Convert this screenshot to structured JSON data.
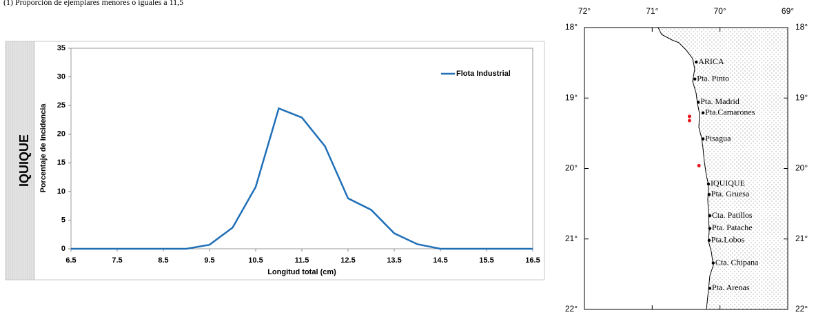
{
  "chart_data": [
    {
      "type": "line",
      "title": "(1) Proporción de ejemplares menores o iguales a 11,5",
      "panel_label": "IQUIQUE",
      "x_label": "Longitud total (cm)",
      "y_label": "Porcentaje de Incidencia",
      "x": [
        6.5,
        7,
        7.5,
        8,
        8.5,
        9,
        9.5,
        10,
        10.5,
        11,
        11.5,
        12,
        12.5,
        13,
        13.5,
        14,
        14.5,
        15,
        15.5,
        16,
        16.5
      ],
      "series": [
        {
          "name": "Flota Industrial",
          "color": "#1f6fb8",
          "values": [
            0,
            0,
            0,
            0,
            0,
            0,
            0.7,
            3.7,
            10.8,
            24.5,
            22.9,
            17.9,
            8.8,
            6.8,
            2.7,
            0.8,
            0,
            0,
            0,
            0,
            0
          ]
        }
      ],
      "xlim": [
        6.5,
        16.5
      ],
      "xticks": [
        6.5,
        7.5,
        8.5,
        9.5,
        10.5,
        11.5,
        12.5,
        13.5,
        14.5,
        15.5,
        16.5
      ],
      "ylim": [
        0,
        35
      ],
      "yticks": [
        0,
        5,
        10,
        15,
        20,
        25,
        30,
        35
      ],
      "legend": "upper-right"
    },
    {
      "type": "map",
      "xlim": [
        72,
        69
      ],
      "xticks": [
        {
          "value": 72,
          "label": "72°"
        },
        {
          "value": 71,
          "label": "71°"
        },
        {
          "value": 70,
          "label": "70°"
        },
        {
          "value": 69,
          "label": "69°"
        }
      ],
      "ylim": [
        22,
        18
      ],
      "yticks": [
        {
          "value": 18,
          "label": "18°"
        },
        {
          "value": 19,
          "label": "19°"
        },
        {
          "value": 20,
          "label": "20°"
        },
        {
          "value": 21,
          "label": "21°"
        },
        {
          "value": 22,
          "label": "22°"
        }
      ],
      "places": [
        {
          "name": "ARICA",
          "lon": 70.35,
          "lat": 18.49
        },
        {
          "name": "Pta. Pinto",
          "lon": 70.37,
          "lat": 18.73
        },
        {
          "name": "Pta. Madrid",
          "lon": 70.32,
          "lat": 19.06
        },
        {
          "name": "Pta.Camarones",
          "lon": 70.25,
          "lat": 19.21
        },
        {
          "name": "Pisagua",
          "lon": 70.25,
          "lat": 19.58
        },
        {
          "name": "IQUIQUE",
          "lon": 70.17,
          "lat": 20.22
        },
        {
          "name": "Pta. Gruesa",
          "lon": 70.16,
          "lat": 20.37
        },
        {
          "name": "Cta. Patillos",
          "lon": 70.15,
          "lat": 20.67
        },
        {
          "name": "Pta. Patache",
          "lon": 70.15,
          "lat": 20.85
        },
        {
          "name": "Pta.Lobos",
          "lon": 70.16,
          "lat": 21.02
        },
        {
          "name": "Cta. Chipana",
          "lon": 70.1,
          "lat": 21.34
        },
        {
          "name": "Pta. Arenas",
          "lon": 70.15,
          "lat": 21.7
        }
      ],
      "points": {
        "color": "#e8141b",
        "lon": [
          70.45,
          70.45,
          70.31
        ],
        "lat": [
          19.26,
          19.32,
          19.96
        ]
      }
    }
  ]
}
